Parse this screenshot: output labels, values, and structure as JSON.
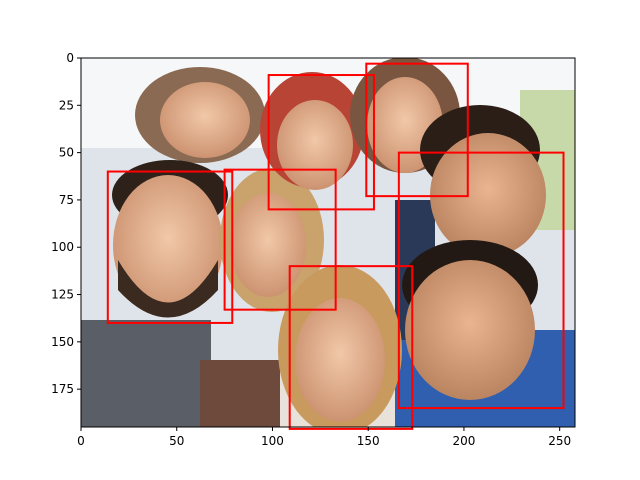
{
  "chart_data": {
    "type": "image-with-bounding-boxes",
    "xlim": [
      0,
      258
    ],
    "ylim": [
      195,
      0
    ],
    "x_ticks": [
      0,
      50,
      100,
      150,
      200,
      250
    ],
    "y_ticks": [
      0,
      25,
      50,
      75,
      100,
      125,
      150,
      175
    ],
    "box_color": "#ff0000",
    "boxes": [
      {
        "x0": 14,
        "y0": 60,
        "x1": 79,
        "y1": 140
      },
      {
        "x0": 75,
        "y0": 59,
        "x1": 133,
        "y1": 133
      },
      {
        "x0": 98,
        "y0": 9,
        "x1": 153,
        "y1": 80
      },
      {
        "x0": 149,
        "y0": 3,
        "x1": 202,
        "y1": 73
      },
      {
        "x0": 166,
        "y0": 50,
        "x1": 252,
        "y1": 185
      },
      {
        "x0": 109,
        "y0": 110,
        "x1": 173,
        "y1": 196
      }
    ]
  },
  "photo": {
    "description_icon": "group-selfie-photo"
  }
}
